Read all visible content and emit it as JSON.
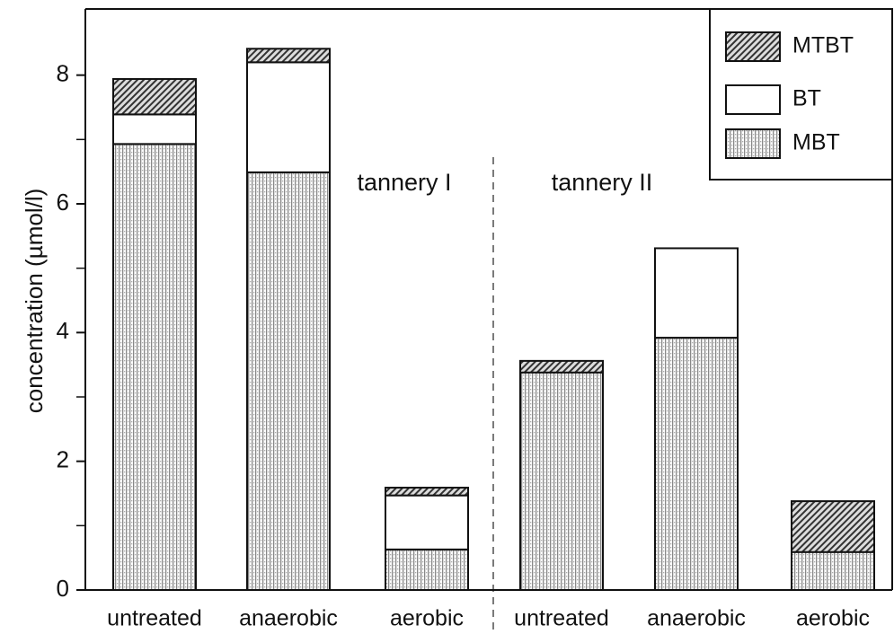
{
  "chart_data": {
    "type": "stacked_bar",
    "y_label": "concentration (µmol/l)",
    "categories": [
      "untreated",
      "anaerobic",
      "aerobic",
      "untreated",
      "anaerobic",
      "aerobic"
    ],
    "series": [
      {
        "name": "MBT",
        "color": "#ffffff",
        "pattern": "dots",
        "values": [
          6.93,
          6.49,
          0.63,
          3.38,
          3.92,
          0.59
        ]
      },
      {
        "name": "BT",
        "color": "#ffffff",
        "pattern": "none",
        "values": [
          0.46,
          1.71,
          0.84,
          0,
          1.39,
          0
        ]
      },
      {
        "name": "MTBT",
        "color": "#ffffff",
        "pattern": "hatch",
        "values": [
          0.55,
          0.21,
          0.12,
          0.18,
          0,
          0.79
        ]
      }
    ],
    "ylim": [
      0,
      9
    ],
    "yticks": [
      0,
      2,
      4,
      6,
      8
    ],
    "yminor_ticks": [
      1,
      3,
      5,
      7
    ],
    "annotations": [
      "tannery I",
      "tannery II"
    ],
    "legend": "upper right"
  }
}
